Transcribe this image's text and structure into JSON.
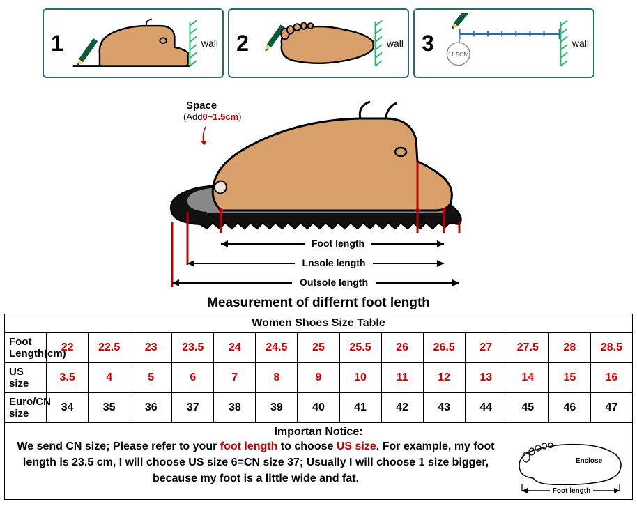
{
  "colors": {
    "boxBorder": "#226b7a",
    "red": "#c00000",
    "footFill": "#d9a06b",
    "footOutline": "#000000",
    "footNail": "#f2e7d9",
    "pencilBody": "#0c5a3a",
    "pencilTip": "#f0d070",
    "wallHatch": "#2b6",
    "rulerBlue": "#1f6fb3",
    "soleBlack": "#111111",
    "arrowRed": "#c00000"
  },
  "steps": [
    {
      "num": "1",
      "wall": "wall"
    },
    {
      "num": "2",
      "wall": "wall"
    },
    {
      "num": "3",
      "wall": "wall",
      "rulerLabel": "11.5CM"
    }
  ],
  "diagram": {
    "spaceLabelTitle": "Space",
    "spaceLabelAdd": "(Add",
    "spaceLabelValue": "0~1.5cm",
    "spaceLabelClose": ")",
    "footLengthLabel": "Foot length",
    "insoleLabel": "Lnsole length",
    "outsoleLabel": "Outsole length",
    "title": "Measurement of differnt foot length"
  },
  "table": {
    "title": "Women Shoes Size Table",
    "rows": [
      {
        "head": "Foot Length(cm)",
        "red": true,
        "cells": [
          "22",
          "22.5",
          "23",
          "23.5",
          "24",
          "24.5",
          "25",
          "25.5",
          "26",
          "26.5",
          "27",
          "27.5",
          "28",
          "28.5"
        ]
      },
      {
        "head": "US size",
        "red": true,
        "cells": [
          "3.5",
          "4",
          "5",
          "6",
          "7",
          "8",
          "9",
          "10",
          "11",
          "12",
          "13",
          "14",
          "15",
          "16"
        ]
      },
      {
        "head": "Euro/CN size",
        "red": false,
        "cells": [
          "34",
          "35",
          "36",
          "37",
          "38",
          "39",
          "40",
          "41",
          "42",
          "43",
          "44",
          "45",
          "46",
          "47"
        ]
      }
    ]
  },
  "notice": {
    "heading": "Importan Notice:",
    "body": "We send CN size; Please refer to your foot length to choose US size. For example, my foot length is 23.5 cm, I will choose US size 6=CN size 37; Usually I will choose 1 size bigger, because my foot is a little wide and fat.",
    "highlight1": "foot length",
    "highlight2": "US size",
    "encloseLabel": "Enclose",
    "footLengthSmall": "Foot length"
  }
}
